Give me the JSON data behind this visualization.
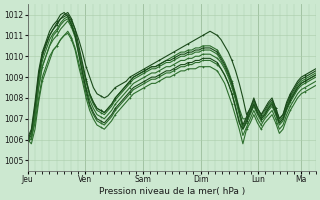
{
  "title": "",
  "xlabel": "Pression niveau de la mer( hPa )",
  "ylabel": "",
  "ylim": [
    1004.5,
    1012.5
  ],
  "yticks": [
    1005,
    1006,
    1007,
    1008,
    1009,
    1010,
    1011,
    1012
  ],
  "day_labels": [
    "Jeu",
    "Ven",
    "Sam",
    "Dim",
    "Lun",
    "Ma"
  ],
  "day_positions": [
    0,
    24,
    48,
    72,
    96,
    114
  ],
  "bg_color": "#cce8d0",
  "grid_color": "#aaccaa",
  "line_color": "#2d6e2d",
  "line_color_dark": "#1a4a1a",
  "total_hours": 120,
  "series": [
    [
      1006.0,
      1006.2,
      1007.5,
      1009.0,
      1010.0,
      1010.5,
      1011.0,
      1011.3,
      1011.5,
      1011.8,
      1011.9,
      1012.0,
      1011.7,
      1011.3,
      1010.8,
      1010.2,
      1009.5,
      1009.0,
      1008.5,
      1008.2,
      1008.1,
      1008.0,
      1008.1,
      1008.3,
      1008.5,
      1008.6,
      1008.7,
      1008.8,
      1009.0,
      1009.1,
      1009.2,
      1009.3,
      1009.4,
      1009.5,
      1009.6,
      1009.7,
      1009.8,
      1009.9,
      1010.0,
      1010.1,
      1010.2,
      1010.3,
      1010.4,
      1010.5,
      1010.6,
      1010.7,
      1010.8,
      1010.9,
      1011.0,
      1011.1,
      1011.2,
      1011.1,
      1011.0,
      1010.8,
      1010.5,
      1010.2,
      1009.8,
      1009.3,
      1008.7,
      1008.0,
      1007.2,
      1007.5,
      1008.0,
      1007.5,
      1007.2,
      1007.5,
      1007.8,
      1008.0,
      1007.5,
      1007.0,
      1007.2,
      1007.8,
      1008.2,
      1008.5,
      1008.8,
      1009.0,
      1009.1,
      1009.2,
      1009.3,
      1009.4
    ],
    [
      1006.0,
      1006.0,
      1007.0,
      1008.5,
      1009.5,
      1010.0,
      1010.5,
      1011.0,
      1011.2,
      1011.5,
      1011.7,
      1011.8,
      1011.5,
      1011.0,
      1010.3,
      1009.5,
      1008.8,
      1008.2,
      1007.8,
      1007.5,
      1007.4,
      1007.3,
      1007.5,
      1007.7,
      1008.0,
      1008.2,
      1008.4,
      1008.6,
      1008.8,
      1009.0,
      1009.1,
      1009.2,
      1009.3,
      1009.4,
      1009.5,
      1009.5,
      1009.6,
      1009.7,
      1009.8,
      1009.9,
      1010.0,
      1010.1,
      1010.2,
      1010.2,
      1010.3,
      1010.3,
      1010.4,
      1010.4,
      1010.5,
      1010.5,
      1010.5,
      1010.4,
      1010.3,
      1010.0,
      1009.7,
      1009.3,
      1008.8,
      1008.2,
      1007.5,
      1007.0,
      1007.0,
      1007.3,
      1007.7,
      1007.3,
      1007.0,
      1007.2,
      1007.5,
      1007.8,
      1007.3,
      1006.8,
      1007.0,
      1007.5,
      1007.9,
      1008.2,
      1008.5,
      1008.7,
      1008.8,
      1008.9,
      1009.0,
      1009.1
    ],
    [
      1006.0,
      1005.8,
      1006.5,
      1007.8,
      1008.8,
      1009.3,
      1009.8,
      1010.3,
      1010.5,
      1010.8,
      1011.0,
      1011.1,
      1010.8,
      1010.3,
      1009.5,
      1008.8,
      1008.0,
      1007.4,
      1007.0,
      1006.7,
      1006.6,
      1006.5,
      1006.7,
      1006.9,
      1007.2,
      1007.4,
      1007.6,
      1007.8,
      1008.0,
      1008.2,
      1008.3,
      1008.4,
      1008.5,
      1008.6,
      1008.7,
      1008.7,
      1008.8,
      1008.9,
      1009.0,
      1009.0,
      1009.1,
      1009.2,
      1009.3,
      1009.3,
      1009.4,
      1009.4,
      1009.4,
      1009.5,
      1009.5,
      1009.5,
      1009.5,
      1009.4,
      1009.3,
      1009.0,
      1008.7,
      1008.2,
      1007.7,
      1007.1,
      1006.5,
      1005.8,
      1006.5,
      1006.8,
      1007.2,
      1006.8,
      1006.5,
      1006.8,
      1007.0,
      1007.2,
      1006.8,
      1006.3,
      1006.5,
      1007.0,
      1007.4,
      1007.7,
      1008.0,
      1008.2,
      1008.3,
      1008.4,
      1008.5,
      1008.6
    ],
    [
      1006.0,
      1006.3,
      1007.2,
      1008.5,
      1009.5,
      1010.0,
      1010.5,
      1010.8,
      1011.0,
      1011.3,
      1011.5,
      1011.7,
      1011.4,
      1010.9,
      1010.1,
      1009.3,
      1008.5,
      1007.9,
      1007.5,
      1007.2,
      1007.1,
      1007.0,
      1007.2,
      1007.4,
      1007.7,
      1007.9,
      1008.1,
      1008.3,
      1008.5,
      1008.7,
      1008.8,
      1008.9,
      1009.0,
      1009.1,
      1009.2,
      1009.2,
      1009.3,
      1009.4,
      1009.5,
      1009.5,
      1009.6,
      1009.7,
      1009.8,
      1009.8,
      1009.9,
      1009.9,
      1010.0,
      1010.0,
      1010.1,
      1010.1,
      1010.1,
      1010.0,
      1009.9,
      1009.7,
      1009.4,
      1009.0,
      1008.5,
      1007.9,
      1007.2,
      1006.5,
      1006.8,
      1007.2,
      1007.6,
      1007.2,
      1006.9,
      1007.1,
      1007.4,
      1007.6,
      1007.2,
      1006.7,
      1006.9,
      1007.4,
      1007.8,
      1008.1,
      1008.4,
      1008.6,
      1008.7,
      1008.8,
      1008.9,
      1009.0
    ],
    [
      1006.0,
      1006.1,
      1006.8,
      1008.0,
      1009.0,
      1009.5,
      1010.0,
      1010.3,
      1010.5,
      1010.8,
      1011.0,
      1011.2,
      1010.9,
      1010.4,
      1009.7,
      1009.0,
      1008.2,
      1007.6,
      1007.2,
      1006.9,
      1006.8,
      1006.7,
      1006.9,
      1007.1,
      1007.4,
      1007.6,
      1007.8,
      1008.0,
      1008.2,
      1008.4,
      1008.5,
      1008.6,
      1008.7,
      1008.8,
      1008.9,
      1008.9,
      1009.0,
      1009.1,
      1009.2,
      1009.2,
      1009.3,
      1009.4,
      1009.5,
      1009.5,
      1009.6,
      1009.6,
      1009.7,
      1009.7,
      1009.8,
      1009.8,
      1009.8,
      1009.7,
      1009.6,
      1009.4,
      1009.1,
      1008.7,
      1008.2,
      1007.6,
      1006.9,
      1006.2,
      1006.6,
      1007.0,
      1007.4,
      1007.0,
      1006.7,
      1007.0,
      1007.2,
      1007.4,
      1007.0,
      1006.5,
      1006.7,
      1007.2,
      1007.6,
      1007.9,
      1008.2,
      1008.4,
      1008.5,
      1008.6,
      1008.7,
      1008.8
    ],
    [
      1006.0,
      1006.0,
      1007.3,
      1008.8,
      1009.8,
      1010.3,
      1010.8,
      1011.1,
      1011.3,
      1011.6,
      1011.8,
      1011.9,
      1011.6,
      1011.1,
      1010.3,
      1009.5,
      1008.8,
      1008.1,
      1007.7,
      1007.4,
      1007.3,
      1007.2,
      1007.4,
      1007.6,
      1007.9,
      1008.1,
      1008.3,
      1008.5,
      1008.7,
      1008.9,
      1009.0,
      1009.1,
      1009.2,
      1009.3,
      1009.4,
      1009.4,
      1009.5,
      1009.6,
      1009.7,
      1009.7,
      1009.8,
      1009.9,
      1010.0,
      1010.0,
      1010.1,
      1010.1,
      1010.2,
      1010.2,
      1010.3,
      1010.3,
      1010.3,
      1010.2,
      1010.1,
      1009.8,
      1009.5,
      1009.1,
      1008.6,
      1008.0,
      1007.3,
      1006.6,
      1007.0,
      1007.4,
      1007.8,
      1007.4,
      1007.1,
      1007.3,
      1007.6,
      1007.8,
      1007.4,
      1006.9,
      1007.1,
      1007.6,
      1008.0,
      1008.3,
      1008.6,
      1008.8,
      1008.9,
      1009.0,
      1009.1,
      1009.2
    ],
    [
      1006.1,
      1006.5,
      1007.8,
      1009.3,
      1010.2,
      1010.7,
      1011.2,
      1011.5,
      1011.7,
      1012.0,
      1012.1,
      1011.9,
      1011.5,
      1011.0,
      1010.1,
      1009.2,
      1008.4,
      1007.7,
      1007.3,
      1007.0,
      1006.9,
      1006.8,
      1007.0,
      1007.2,
      1007.5,
      1007.7,
      1007.9,
      1008.1,
      1008.3,
      1008.5,
      1008.6,
      1008.7,
      1008.8,
      1008.9,
      1009.0,
      1009.0,
      1009.1,
      1009.2,
      1009.3,
      1009.3,
      1009.4,
      1009.5,
      1009.6,
      1009.6,
      1009.7,
      1009.7,
      1009.8,
      1009.8,
      1009.9,
      1009.9,
      1009.9,
      1009.8,
      1009.7,
      1009.4,
      1009.1,
      1008.7,
      1008.2,
      1007.5,
      1006.8,
      1006.5,
      1006.9,
      1007.3,
      1007.7,
      1007.3,
      1007.0,
      1007.2,
      1007.5,
      1007.7,
      1007.3,
      1006.8,
      1007.0,
      1007.5,
      1007.9,
      1008.2,
      1008.5,
      1008.7,
      1008.8,
      1008.9,
      1009.0,
      1009.1
    ],
    [
      1006.0,
      1006.4,
      1007.6,
      1009.1,
      1010.1,
      1010.6,
      1011.0,
      1011.3,
      1011.6,
      1011.8,
      1012.0,
      1012.1,
      1011.8,
      1011.3,
      1010.5,
      1009.7,
      1008.9,
      1008.2,
      1007.8,
      1007.5,
      1007.4,
      1007.3,
      1007.5,
      1007.7,
      1008.0,
      1008.2,
      1008.4,
      1008.6,
      1008.8,
      1009.0,
      1009.1,
      1009.2,
      1009.3,
      1009.4,
      1009.5,
      1009.5,
      1009.6,
      1009.7,
      1009.8,
      1009.8,
      1009.9,
      1010.0,
      1010.1,
      1010.1,
      1010.2,
      1010.2,
      1010.3,
      1010.3,
      1010.4,
      1010.4,
      1010.4,
      1010.3,
      1010.2,
      1009.9,
      1009.6,
      1009.2,
      1008.7,
      1008.1,
      1007.4,
      1006.7,
      1007.1,
      1007.5,
      1007.9,
      1007.5,
      1007.2,
      1007.4,
      1007.7,
      1007.9,
      1007.5,
      1007.0,
      1007.2,
      1007.7,
      1008.1,
      1008.4,
      1008.7,
      1008.9,
      1009.0,
      1009.1,
      1009.2,
      1009.3
    ]
  ]
}
